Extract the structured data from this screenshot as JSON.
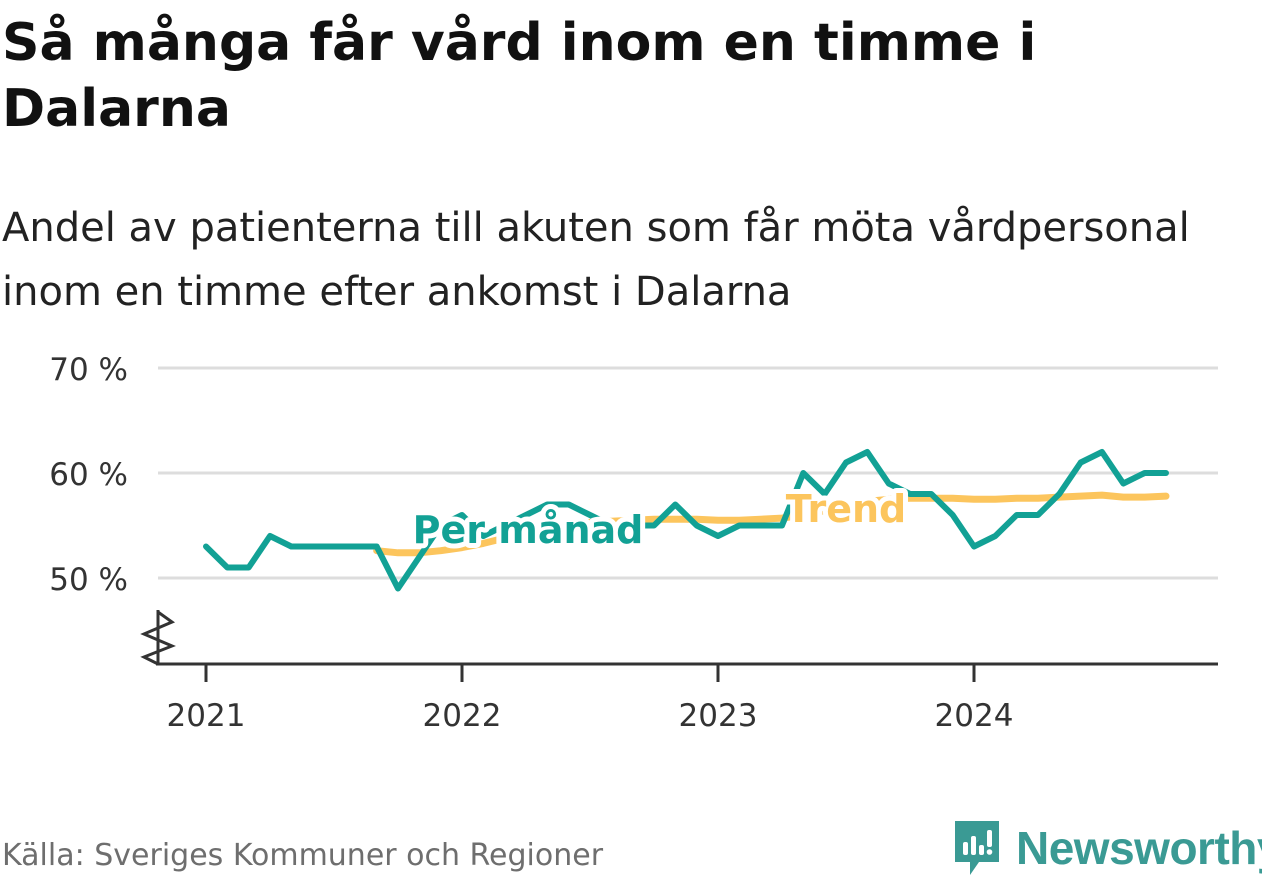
{
  "title": "Så många får vård inom en timme i Dalarna",
  "subtitle": "Andel av patienterna till akuten som får möta vårdpersonal inom en timme efter ankomst i Dalarna",
  "source": "Källa: Sveriges Kommuner och Regioner",
  "brand": {
    "name": "Newsworthy",
    "icon": "newsworthy-logo-icon",
    "color": "#3a9a94"
  },
  "colors": {
    "monthly": "#12a195",
    "trend": "#fcc55d",
    "grid": "#dddddd",
    "axis": "#333333"
  },
  "chart_data": {
    "type": "line",
    "title": "Så många får vård inom en timme i Dalarna",
    "ylabel": "",
    "xlabel": "",
    "ylim": [
      42,
      70
    ],
    "y_ticks": [
      50,
      60,
      70
    ],
    "y_tick_labels": [
      "50 %",
      "60 %",
      "70 %"
    ],
    "y_axis_break": true,
    "x_ticks": [
      2021,
      2022,
      2023,
      2024
    ],
    "x_tick_labels": [
      "2021",
      "2022",
      "2023",
      "2024"
    ],
    "grid": true,
    "series": [
      {
        "name": "Per månad",
        "color": "#12a195",
        "x": [
          "2021-01",
          "2021-02",
          "2021-03",
          "2021-04",
          "2021-05",
          "2021-06",
          "2021-07",
          "2021-08",
          "2021-09",
          "2021-10",
          "2021-11",
          "2021-12",
          "2022-01",
          "2022-02",
          "2022-03",
          "2022-04",
          "2022-05",
          "2022-06",
          "2022-07",
          "2022-08",
          "2022-09",
          "2022-10",
          "2022-11",
          "2022-12",
          "2023-01",
          "2023-02",
          "2023-03",
          "2023-04",
          "2023-05",
          "2023-06",
          "2023-07",
          "2023-08",
          "2023-09",
          "2023-10",
          "2023-11",
          "2023-12",
          "2024-01",
          "2024-02",
          "2024-03",
          "2024-04",
          "2024-05",
          "2024-06",
          "2024-07",
          "2024-08",
          "2024-09",
          "2024-10"
        ],
        "values": [
          53,
          51,
          51,
          54,
          53,
          53,
          53,
          53,
          53,
          49,
          52,
          55,
          56,
          54,
          55,
          56,
          57,
          57,
          56,
          55,
          55,
          55,
          57,
          55,
          54,
          55,
          55,
          55,
          60,
          58,
          61,
          62,
          59,
          58,
          58,
          56,
          53,
          54,
          56,
          56,
          58,
          61,
          62,
          59,
          60,
          60
        ]
      },
      {
        "name": "Trend",
        "color": "#fcc55d",
        "x": [
          "2021-09",
          "2021-10",
          "2021-11",
          "2021-12",
          "2022-01",
          "2022-02",
          "2022-03",
          "2022-04",
          "2022-05",
          "2022-06",
          "2022-07",
          "2022-08",
          "2022-09",
          "2022-10",
          "2022-11",
          "2022-12",
          "2023-01",
          "2023-02",
          "2023-03",
          "2023-04",
          "2023-05",
          "2023-06",
          "2023-07",
          "2023-08",
          "2023-09",
          "2023-10",
          "2023-11",
          "2023-12",
          "2024-01",
          "2024-02",
          "2024-03",
          "2024-04",
          "2024-05",
          "2024-06",
          "2024-07",
          "2024-08",
          "2024-09",
          "2024-10"
        ],
        "values": [
          52.6,
          52.4,
          52.4,
          52.6,
          52.9,
          53.3,
          53.8,
          54.3,
          54.8,
          55.1,
          55.3,
          55.4,
          55.5,
          55.6,
          55.6,
          55.6,
          55.5,
          55.5,
          55.6,
          55.7,
          56.0,
          56.4,
          56.9,
          57.3,
          57.5,
          57.6,
          57.6,
          57.6,
          57.5,
          57.5,
          57.6,
          57.6,
          57.7,
          57.8,
          57.9,
          57.7,
          57.7,
          57.8
        ]
      }
    ],
    "annotations": [
      {
        "text": "Per månad",
        "series": "Per månad",
        "at": "2022-05",
        "value": 55
      },
      {
        "text": "Trend",
        "series": "Trend",
        "at": "2023-07",
        "value": 57
      }
    ]
  }
}
